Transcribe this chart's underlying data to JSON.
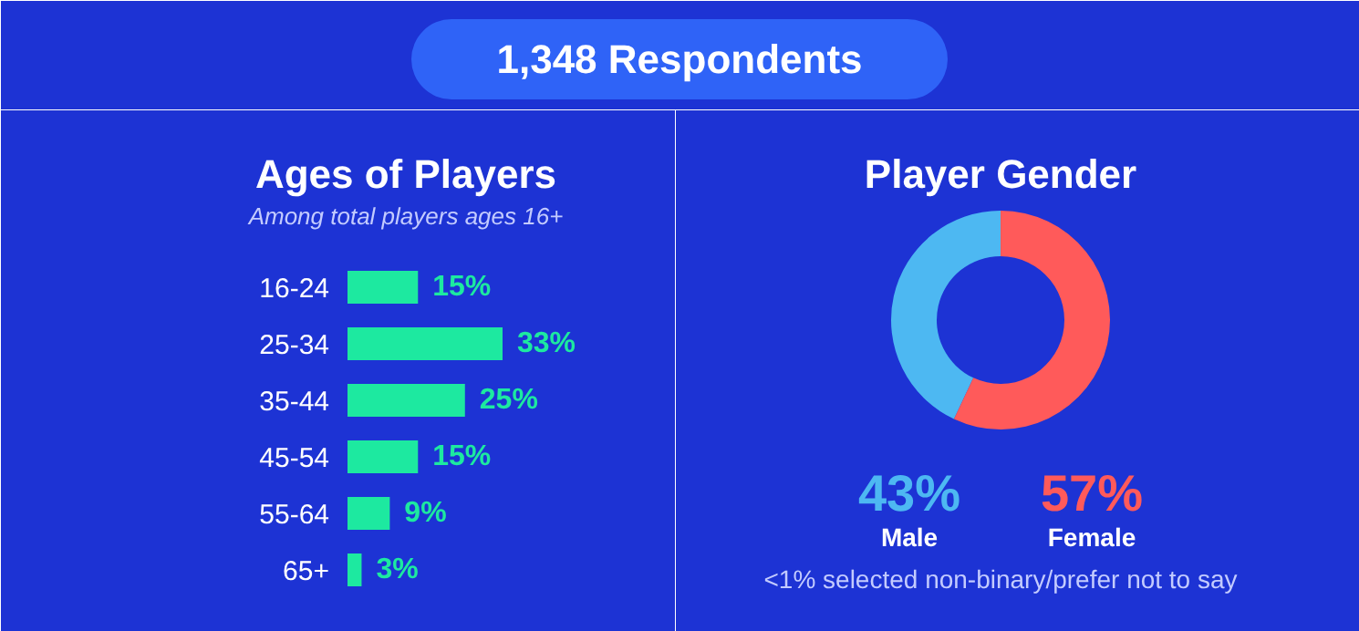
{
  "chart_data": [
    {
      "type": "bar",
      "orientation": "horizontal",
      "title": "Ages of Players",
      "subtitle": "Among total players ages 16+",
      "annotations": [
        "1,348 Respondents"
      ],
      "categories": [
        "16-24",
        "25-34",
        "35-44",
        "45-54",
        "55-64",
        "65+"
      ],
      "values": [
        15,
        33,
        25,
        15,
        9,
        3
      ],
      "color": "#1de9a0",
      "value_labels": [
        "15%",
        "33%",
        "25%",
        "15%",
        "9%",
        "3%"
      ]
    },
    {
      "type": "donut",
      "title": "Player Gender",
      "categories": [
        "Male",
        "Female"
      ],
      "values": [
        43,
        57
      ],
      "colors": [
        "#4db8f2",
        "#ff5a5a"
      ],
      "value_labels": [
        "43%",
        "57%"
      ],
      "annotations": [
        "<1% selected non-binary/prefer not to say"
      ]
    }
  ]
}
